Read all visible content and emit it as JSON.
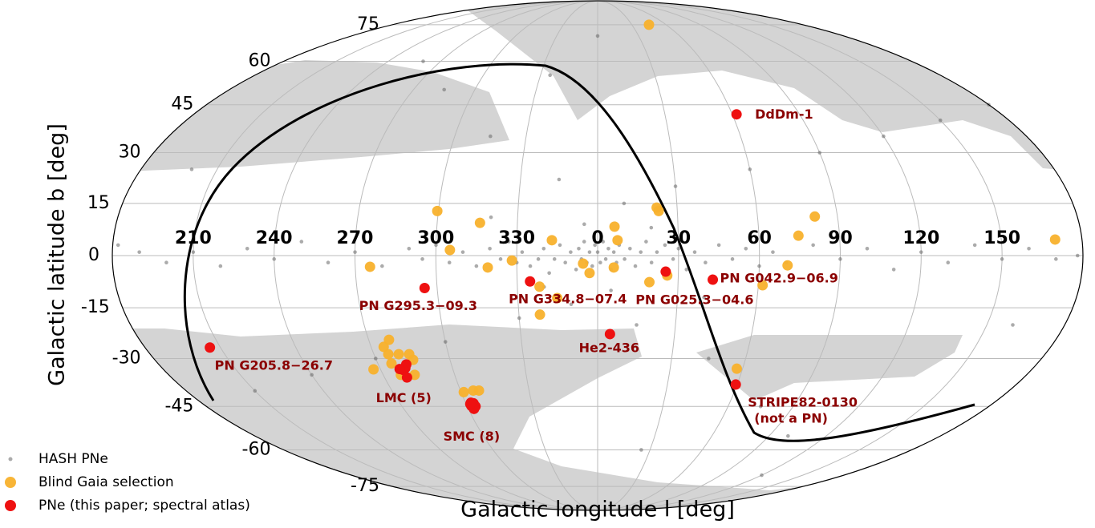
{
  "chart_data": {
    "type": "skymap",
    "projection": "mollweide",
    "xlabel": "Galactic longitude  l [deg]",
    "ylabel": "Galactic latitude  b [deg]",
    "xlim": [
      -180,
      180
    ],
    "ylim": [
      -90,
      90
    ],
    "xticks": [
      210,
      240,
      270,
      300,
      330,
      0,
      30,
      60,
      90,
      120,
      150
    ],
    "yticks": [
      -75,
      -60,
      -45,
      -30,
      -15,
      0,
      15,
      30,
      45,
      60,
      75
    ],
    "grid": true,
    "legend": "lower left",
    "series": [
      {
        "name": "HASH PNe",
        "color": "#666666",
        "x": [
          0,
          1,
          359,
          2,
          358,
          3,
          357,
          4,
          356,
          5,
          355,
          6,
          354,
          7,
          353,
          8,
          352,
          10,
          350,
          12,
          348,
          14,
          346,
          16,
          344,
          18,
          342,
          20,
          340,
          22,
          338,
          25,
          335,
          28,
          332,
          30,
          330,
          33,
          327,
          36,
          324,
          40,
          320,
          45,
          315,
          50,
          310,
          55,
          305,
          60,
          300,
          65,
          295,
          70,
          290,
          80,
          280,
          90,
          270,
          100,
          260,
          110,
          250,
          120,
          240,
          130,
          230,
          140,
          220,
          150,
          210,
          160,
          200,
          170,
          190,
          178,
          182,
          10,
          350,
          30,
          330,
          60,
          300,
          90,
          270,
          120,
          240,
          150,
          210,
          15,
          345,
          45,
          315,
          75,
          285,
          100,
          260,
          5,
          355,
          20,
          340,
          40,
          320,
          160,
          200,
          180,
          25,
          335,
          0,
          120
        ],
        "values": [
          1,
          -2,
          3,
          4,
          -3,
          -1,
          1,
          2,
          -2,
          -4,
          4,
          1,
          -1,
          -2,
          2,
          3,
          -4,
          -1,
          1,
          2,
          -2,
          -3,
          3,
          1,
          -1,
          4,
          -5,
          -2,
          2,
          1,
          -1,
          3,
          -3,
          -1,
          1,
          2,
          -2,
          -4,
          4,
          1,
          -1,
          -2,
          2,
          3,
          -3,
          -1,
          1,
          2,
          -2,
          -3,
          3,
          1,
          -1,
          -2,
          2,
          3,
          -3,
          -1,
          1,
          2,
          -2,
          -4,
          4,
          1,
          -1,
          -2,
          2,
          3,
          -3,
          -1,
          1,
          2,
          -2,
          -1,
          1,
          0,
          3,
          15,
          -14,
          20,
          -18,
          25,
          -25,
          30,
          -30,
          35,
          -35,
          40,
          -40,
          -20,
          22,
          -30,
          35,
          -45,
          50,
          -55,
          60,
          -10,
          9,
          8,
          -9,
          -12,
          11,
          -20,
          25,
          45,
          -60,
          55,
          70,
          -70
        ]
      },
      {
        "name": "Blind Gaia selection",
        "color": "#f8b12c",
        "x": [
          45,
          299.6,
          316,
          305.2,
          328.2,
          319.2,
          343,
          338.3,
          338,
          344.8,
          354.6,
          357,
          6.3,
          7.4,
          6,
          22.3,
          23,
          25.9,
          19.3,
          61.6,
          70.5,
          74.7,
          81.5,
          170,
          275.5,
          267.1,
          57.6,
          301.2,
          278,
          275,
          275.8,
          280,
          284.2,
          285,
          275.6,
          277.4,
          283.2,
          305.6,
          308.1
        ],
        "values": [
          75,
          12.8,
          9.4,
          1.6,
          -1.4,
          -3.4,
          4.4,
          -8.9,
          -17,
          -12.2,
          -2.3,
          -5,
          8.3,
          4.4,
          -3.4,
          13.8,
          12.8,
          -5.7,
          -7.6,
          -8.5,
          -2.8,
          5.7,
          11.2,
          4.6,
          -3.2,
          -33.3,
          -33.1,
          -40.4,
          -24.4,
          -26.5,
          -28.7,
          -28.7,
          -28.7,
          -30.4,
          -31.5,
          -35,
          -35,
          -39.9,
          -39.9
        ]
      },
      {
        "name": "PNe (this paper; spectral atlas)",
        "color": "#ee1111",
        "x": [
          61.9,
          295.3,
          334.8,
          25.3,
          42.9,
          205.8,
          4.8,
          59.4,
          280.5,
          281.5,
          279.4,
          278,
          279.5,
          302.8,
          303.5,
          302,
          303,
          302.4,
          303.8,
          302.6,
          301.9
        ],
        "values": [
          41.9,
          -9.3,
          -7.4,
          -4.6,
          -6.9,
          -26.7,
          -22.7,
          -38,
          -32.9,
          -31.8,
          -33.5,
          -33.2,
          -35.8,
          -44.3,
          -44,
          -44.8,
          -45.2,
          -43.8,
          -45,
          -45.8,
          -44.2
        ],
        "point_labels": [
          "DdDm-1",
          "PN G295.3−09.3",
          "PN G334.8−07.4",
          "PN G025.3−04.6",
          "PN G042.9−06.9",
          "PN G205.8−26.7",
          "He2-436",
          [
            "STRIPE82-0130",
            "(not a PN)"
          ],
          "LMC (5)",
          null,
          null,
          null,
          null,
          "SMC (8)",
          null,
          null,
          null,
          null,
          null,
          null,
          null
        ],
        "label_color": "#8b0000"
      }
    ]
  }
}
